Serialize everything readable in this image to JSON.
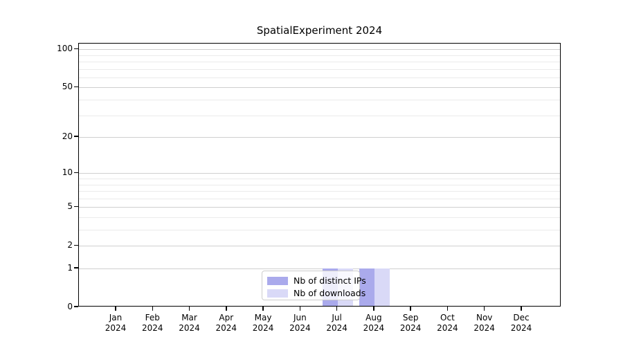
{
  "chart_data": {
    "type": "bar",
    "title": "SpatialExperiment 2024",
    "categories": [
      "Jan",
      "Feb",
      "Mar",
      "Apr",
      "May",
      "Jun",
      "Jul",
      "Aug",
      "Sep",
      "Oct",
      "Nov",
      "Dec"
    ],
    "x_tick_second_line": "2024",
    "series": [
      {
        "name": "Nb of distinct IPs",
        "color": "#aaaaec",
        "values": [
          0,
          0,
          0,
          0,
          0,
          0,
          1,
          1,
          0,
          0,
          0,
          0
        ]
      },
      {
        "name": "Nb of downloads",
        "color": "#d9d9f7",
        "values": [
          0,
          0,
          0,
          0,
          0,
          0,
          1,
          1,
          0,
          0,
          0,
          0
        ]
      }
    ],
    "xlabel": "",
    "ylabel": "",
    "yscale": "log10(1+x)",
    "ylim": [
      0,
      111
    ],
    "yticks": [
      0,
      1,
      2,
      5,
      10,
      20,
      50,
      100
    ],
    "minor_gridline_values": [
      1,
      2,
      3,
      4,
      5,
      6,
      7,
      8,
      9,
      10,
      20,
      30,
      40,
      50,
      60,
      70,
      80,
      90,
      100
    ],
    "major_gridline_values": [
      1,
      2,
      5,
      10,
      20,
      50,
      100
    ],
    "grid": true,
    "legend_position": "inside-bottom-center",
    "colors": {
      "major_grid": "#cfcfcf",
      "minor_grid": "#ebebeb",
      "axis_frame": "#000000",
      "background": "#ffffff"
    }
  }
}
